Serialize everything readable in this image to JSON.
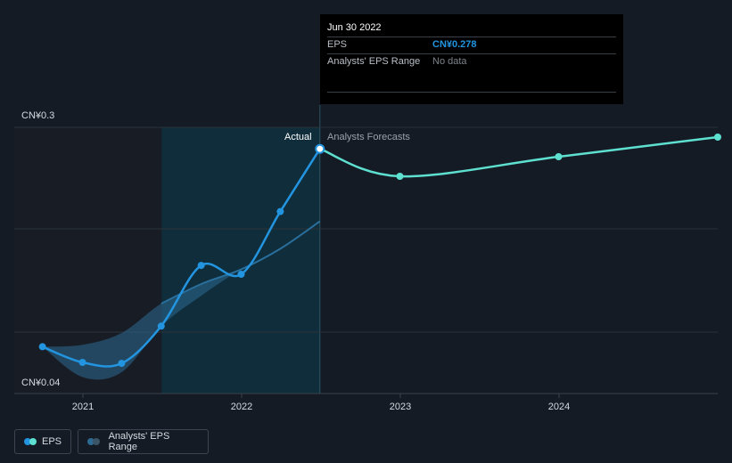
{
  "tooltip": {
    "date": "Jun 30 2022",
    "eps_label": "EPS",
    "eps_value": "CN¥0.278",
    "range_label": "Analysts' EPS Range",
    "range_value": "No data"
  },
  "labels": {
    "y_top": "CN¥0.3",
    "y_bottom": "CN¥0.04",
    "actual": "Actual",
    "forecasts": "Analysts Forecasts"
  },
  "legend": {
    "eps": "EPS",
    "range": "Analysts' EPS Range"
  },
  "colors": {
    "background": "#151b24",
    "actual_line": "#2394df",
    "forecast_line": "#5ee0d0",
    "range_fill": "#2d6a91",
    "grid": "#2c323a"
  },
  "chart_data": {
    "type": "line",
    "ylim": [
      0.04,
      0.3
    ],
    "xlim": [
      "2020-07-01",
      "2024-12-31"
    ],
    "x_ticks": [
      "2021",
      "2022",
      "2023",
      "2024"
    ],
    "y_tick_labels": [
      "CN¥0.3",
      "CN¥0.04"
    ],
    "series": [
      {
        "name": "EPS",
        "kind": "actual",
        "x": [
          "2020-09-30",
          "2020-12-31",
          "2021-03-31",
          "2021-06-30",
          "2021-09-30",
          "2021-12-31",
          "2022-03-31",
          "2022-06-30"
        ],
        "y": [
          0.076,
          0.06,
          0.059,
          0.097,
          0.159,
          0.15,
          0.214,
          0.278
        ]
      },
      {
        "name": "Analysts Forecasts",
        "kind": "forecast",
        "x": [
          "2022-06-30",
          "2022-12-31",
          "2023-12-31",
          "2024-12-31"
        ],
        "y": [
          0.278,
          0.25,
          0.27,
          0.29
        ]
      },
      {
        "name": "Analysts' EPS Range",
        "kind": "range",
        "x": [
          "2020-09-30",
          "2020-12-31",
          "2021-03-31",
          "2021-06-30",
          "2021-09-30",
          "2021-12-31",
          "2022-03-31",
          "2022-06-30"
        ],
        "low": [
          0.076,
          0.045,
          0.05,
          0.097,
          0.128,
          0.155,
          0.176,
          0.204
        ],
        "high": [
          0.076,
          0.078,
          0.09,
          0.12,
          0.14,
          0.155,
          0.176,
          0.204
        ]
      }
    ],
    "legend": [
      "EPS",
      "Analysts' EPS Range"
    ],
    "grid": true
  }
}
